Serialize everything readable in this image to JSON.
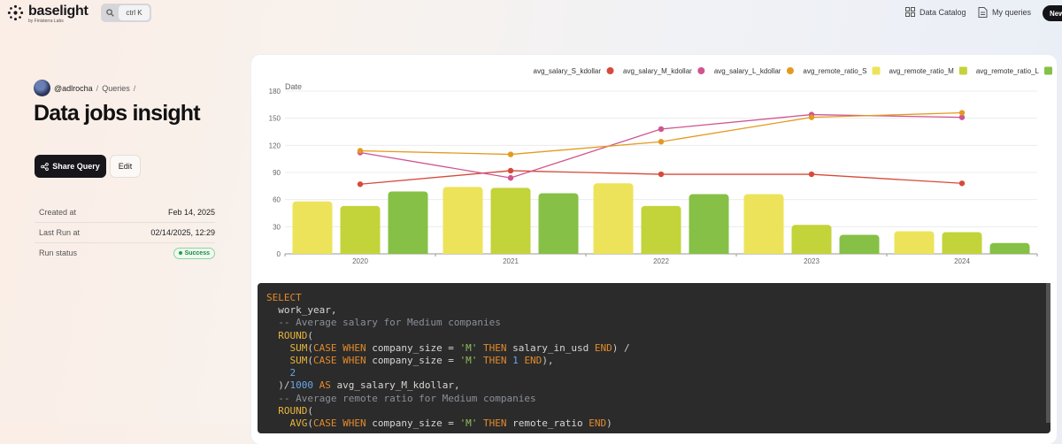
{
  "header": {
    "logo_name": "baselight",
    "logo_sub": "by Finisterra Labs",
    "search_shortcut": "ctrl K",
    "nav": [
      {
        "label": "Data Catalog",
        "icon": "grid-icon"
      },
      {
        "label": "My queries",
        "icon": "document-icon"
      }
    ],
    "new_label": "New"
  },
  "breadcrumb": {
    "user": "@adlrocha",
    "section": "Queries"
  },
  "page_title": "Data jobs insight",
  "actions": {
    "share_label": "Share Query",
    "edit_label": "Edit"
  },
  "meta": [
    {
      "label": "Created at",
      "value": "Feb 14, 2025"
    },
    {
      "label": "Last Run at",
      "value": "02/14/2025, 12:29"
    },
    {
      "label": "Run status",
      "value": "Success",
      "status_color": "#1f8a3d"
    }
  ],
  "chart_data": {
    "type": "bar",
    "axis_label": "Date",
    "xlabel": "",
    "ylim": [
      0,
      180
    ],
    "yticks": [
      0,
      30,
      60,
      90,
      120,
      150,
      180
    ],
    "categories": [
      "2020",
      "2021",
      "2022",
      "2023",
      "2024"
    ],
    "grid": true,
    "legend_position": "top-right",
    "series": [
      {
        "name": "avg_salary_S_kdollar",
        "type": "line",
        "color": "#d64a3b",
        "values": [
          77,
          92,
          88,
          88,
          78
        ]
      },
      {
        "name": "avg_salary_M_kdollar",
        "type": "line",
        "color": "#d0548f",
        "values": [
          112,
          84,
          138,
          154,
          151
        ]
      },
      {
        "name": "avg_salary_L_kdollar",
        "type": "line",
        "color": "#e39a22",
        "values": [
          114,
          110,
          124,
          151,
          156
        ]
      },
      {
        "name": "avg_remote_ratio_S",
        "type": "bar",
        "color": "#ede35a",
        "values": [
          58,
          74,
          78,
          66,
          25
        ]
      },
      {
        "name": "avg_remote_ratio_M",
        "type": "bar",
        "color": "#c3d33a",
        "values": [
          53,
          73,
          53,
          32,
          24
        ]
      },
      {
        "name": "avg_remote_ratio_L",
        "type": "bar",
        "color": "#86c046",
        "values": [
          69,
          67,
          66,
          21,
          12
        ]
      }
    ]
  },
  "code": {
    "lines": [
      [
        {
          "t": "kw",
          "v": "SELECT"
        }
      ],
      [
        {
          "t": "id",
          "v": "  work_year,"
        }
      ],
      [
        {
          "t": "cm",
          "v": "  -- Average salary for Medium companies"
        }
      ],
      [
        {
          "t": "fn",
          "v": "  ROUND"
        },
        {
          "t": "op",
          "v": "("
        }
      ],
      [
        {
          "t": "fn",
          "v": "    SUM"
        },
        {
          "t": "op",
          "v": "("
        },
        {
          "t": "kw",
          "v": "CASE WHEN"
        },
        {
          "t": "id",
          "v": " company_size = "
        },
        {
          "t": "str",
          "v": "'M'"
        },
        {
          "t": "kw",
          "v": " THEN"
        },
        {
          "t": "id",
          "v": " salary_in_usd "
        },
        {
          "t": "kw",
          "v": "END"
        },
        {
          "t": "op",
          "v": ") /"
        }
      ],
      [
        {
          "t": "fn",
          "v": "    SUM"
        },
        {
          "t": "op",
          "v": "("
        },
        {
          "t": "kw",
          "v": "CASE WHEN"
        },
        {
          "t": "id",
          "v": " company_size = "
        },
        {
          "t": "str",
          "v": "'M'"
        },
        {
          "t": "kw",
          "v": " THEN"
        },
        {
          "t": "num",
          "v": " 1 "
        },
        {
          "t": "kw",
          "v": "END"
        },
        {
          "t": "op",
          "v": "),"
        }
      ],
      [
        {
          "t": "num",
          "v": "    2"
        }
      ],
      [
        {
          "t": "op",
          "v": "  )/"
        },
        {
          "t": "num",
          "v": "1000"
        },
        {
          "t": "kw",
          "v": " AS"
        },
        {
          "t": "id",
          "v": " avg_salary_M_kdollar,"
        }
      ],
      [
        {
          "t": "cm",
          "v": "  -- Average remote ratio for Medium companies"
        }
      ],
      [
        {
          "t": "fn",
          "v": "  ROUND"
        },
        {
          "t": "op",
          "v": "("
        }
      ],
      [
        {
          "t": "fn",
          "v": "    AVG"
        },
        {
          "t": "op",
          "v": "("
        },
        {
          "t": "kw",
          "v": "CASE WHEN"
        },
        {
          "t": "id",
          "v": " company_size = "
        },
        {
          "t": "str",
          "v": "'M'"
        },
        {
          "t": "kw",
          "v": " THEN"
        },
        {
          "t": "id",
          "v": " remote_ratio "
        },
        {
          "t": "kw",
          "v": "END"
        },
        {
          "t": "op",
          "v": ")"
        }
      ]
    ]
  }
}
